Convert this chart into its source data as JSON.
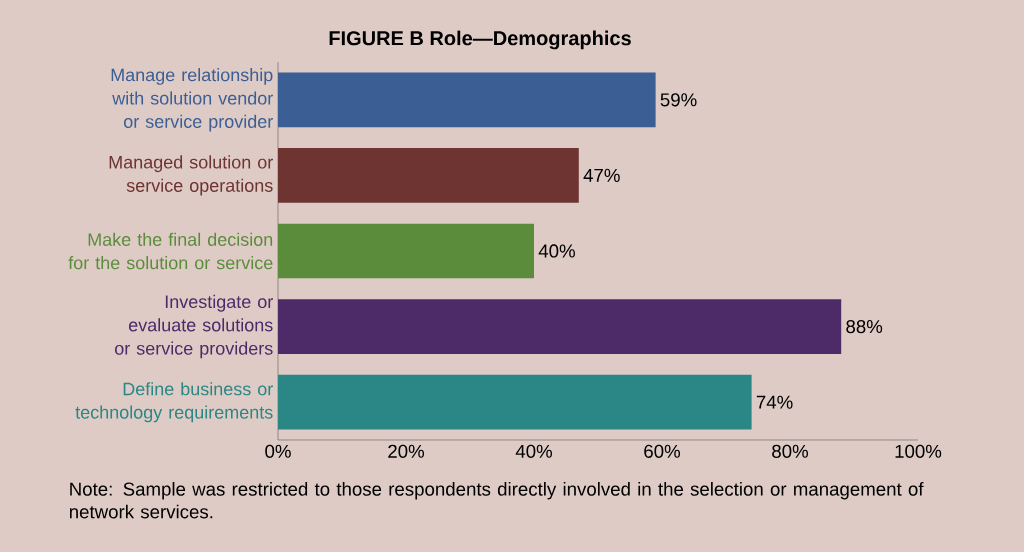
{
  "chart_data": {
    "type": "bar",
    "orientation": "horizontal",
    "title": "FIGURE B  Role—Demographics",
    "categories": [
      "Manage relationship with solution vendor or service provider",
      "Managed solution or service operations",
      "Make the final decision for the solution or service",
      "Investigate or evaluate solutions or service providers",
      "Define business or technology requirements"
    ],
    "values": [
      59,
      47,
      40,
      88,
      74
    ],
    "value_labels": [
      "59%",
      "47%",
      "40%",
      "88%",
      "74%"
    ],
    "colors": [
      "#3b5f95",
      "#6e3431",
      "#5b8c3c",
      "#4d2a68",
      "#2a8785"
    ],
    "xlim": [
      0,
      100
    ],
    "xticks": [
      {
        "value": 0,
        "label": "0%"
      },
      {
        "value": 20,
        "label": "20%"
      },
      {
        "value": 40,
        "label": "40%"
      },
      {
        "value": 60,
        "label": "60%"
      },
      {
        "value": 80,
        "label": "80%"
      },
      {
        "value": 100,
        "label": "100%"
      }
    ],
    "grid": false,
    "annotations": [
      "Note: Sample was restricted to those respondents directly involved in the selection or management of network services."
    ]
  }
}
